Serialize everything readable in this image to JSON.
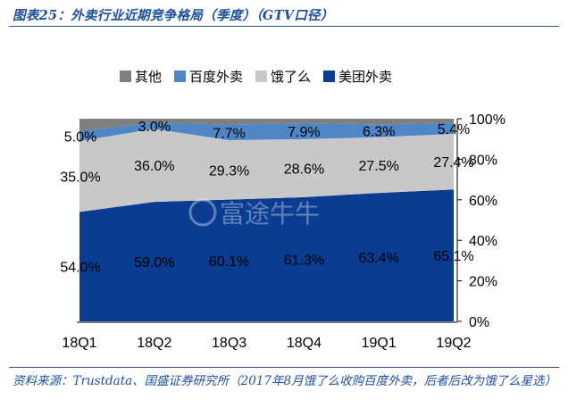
{
  "figure": {
    "title": "图表25：外卖行业近期竞争格局（季度）（GTV口径）",
    "source": "资料来源：Trustdata、国盛证券研究所（2017年8月饿了么收购百度外卖，后者后改为饿了么星选）"
  },
  "chart_data": {
    "type": "area",
    "stacked": true,
    "categories": [
      "18Q1",
      "18Q2",
      "18Q3",
      "18Q4",
      "19Q1",
      "19Q2"
    ],
    "series": [
      {
        "name": "美团外卖",
        "values": [
          54.0,
          59.0,
          60.1,
          61.3,
          63.4,
          65.1
        ],
        "labels": [
          "54.0%",
          "59.0%",
          "60.1%",
          "61.3%",
          "63.4%",
          "65.1%"
        ],
        "color": "#0a3d91"
      },
      {
        "name": "饿了么",
        "values": [
          35.0,
          36.0,
          29.3,
          28.6,
          27.5,
          27.4
        ],
        "labels": [
          "35.0%",
          "36.0%",
          "29.3%",
          "28.6%",
          "27.5%",
          "27.4%"
        ],
        "color": "#c8c8c8"
      },
      {
        "name": "百度外卖",
        "values": [
          5.0,
          3.0,
          7.7,
          7.9,
          6.3,
          5.4
        ],
        "labels": [
          "5.0%",
          "3.0%",
          "7.7%",
          "7.9%",
          "6.3%",
          "5.4%"
        ],
        "color": "#4f86c6"
      },
      {
        "name": "其他",
        "values": [
          6.0,
          2.0,
          2.9,
          2.2,
          2.8,
          2.1
        ],
        "labels": [
          "",
          "",
          "",
          "",
          "",
          ""
        ],
        "color": "#7f7f7f"
      }
    ],
    "legend_order": [
      "其他",
      "百度外卖",
      "饿了么",
      "美团外卖"
    ],
    "legend_position": "top",
    "yaxis": {
      "side": "right",
      "ylim": [
        0,
        100
      ],
      "ticks": [
        "0%",
        "20%",
        "40%",
        "60%",
        "80%",
        "100%"
      ]
    },
    "grid": false,
    "watermark": "富途牛牛"
  }
}
